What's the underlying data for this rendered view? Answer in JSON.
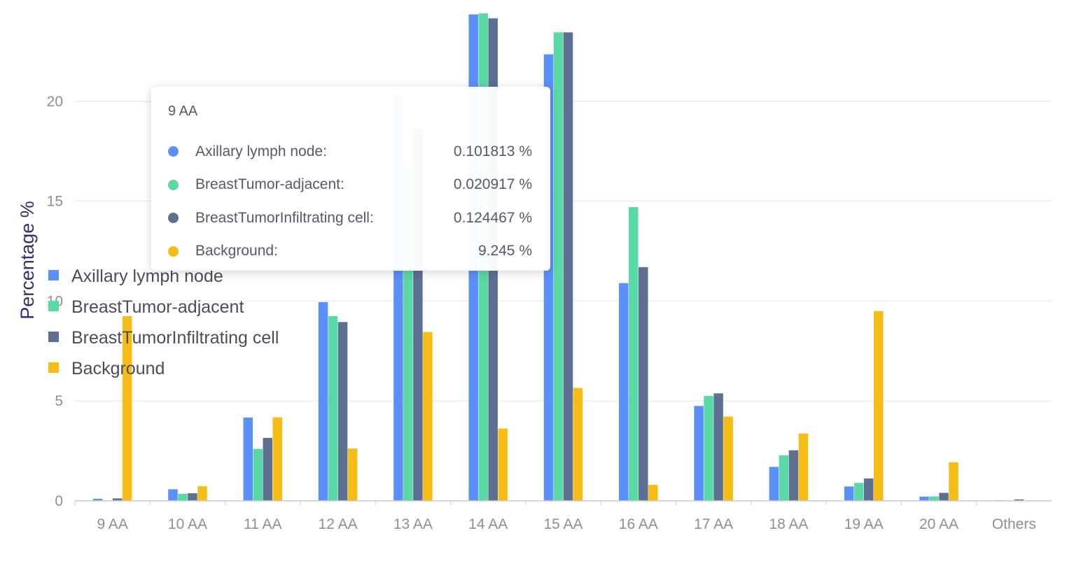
{
  "chart_data": {
    "type": "bar",
    "ylabel": "Percentage %",
    "xlabel": "",
    "ylim": [
      0,
      25
    ],
    "yticks": [
      0,
      5,
      10,
      15,
      20
    ],
    "grid": true,
    "legend_position": "left",
    "categories": [
      "9 AA",
      "10 AA",
      "11 AA",
      "12 AA",
      "13 AA",
      "14 AA",
      "15 AA",
      "16 AA",
      "17 AA",
      "18 AA",
      "19 AA",
      "20 AA",
      "Others"
    ],
    "series": [
      {
        "name": "Axillary lymph node",
        "color": "#5b8ff9",
        "values": [
          0.101813,
          0.58,
          4.17,
          9.95,
          20.3,
          24.35,
          22.35,
          10.9,
          4.75,
          1.7,
          0.72,
          0.21,
          0.03
        ]
      },
      {
        "name": "BreastTumor-adjacent",
        "color": "#5ad8a6",
        "values": [
          0.020917,
          0.35,
          2.6,
          9.25,
          16.7,
          24.4,
          23.45,
          14.7,
          5.25,
          2.28,
          0.9,
          0.22,
          0.02
        ]
      },
      {
        "name": "BreastTumorInfiltrating cell",
        "color": "#5d7092",
        "values": [
          0.124467,
          0.38,
          3.15,
          8.95,
          18.6,
          24.15,
          23.45,
          11.7,
          5.38,
          2.53,
          1.12,
          0.4,
          0.07
        ]
      },
      {
        "name": "Background",
        "color": "#f6bd16",
        "values": [
          9.245,
          0.73,
          4.18,
          2.62,
          8.45,
          3.62,
          5.65,
          0.8,
          4.22,
          3.37,
          9.5,
          1.93,
          0.0
        ]
      }
    ]
  },
  "tooltip": {
    "title": "9 AA",
    "rows": [
      {
        "name": "Axillary lymph node:",
        "value": "0.101813 %",
        "color": "#5b8ff9"
      },
      {
        "name": "BreastTumor-adjacent:",
        "value": "0.020917 %",
        "color": "#5ad8a6"
      },
      {
        "name": "BreastTumorInfiltrating cell:",
        "value": "0.124467 %",
        "color": "#5d7092"
      },
      {
        "name": "Background:",
        "value": "9.245 %",
        "color": "#f6bd16"
      }
    ]
  }
}
